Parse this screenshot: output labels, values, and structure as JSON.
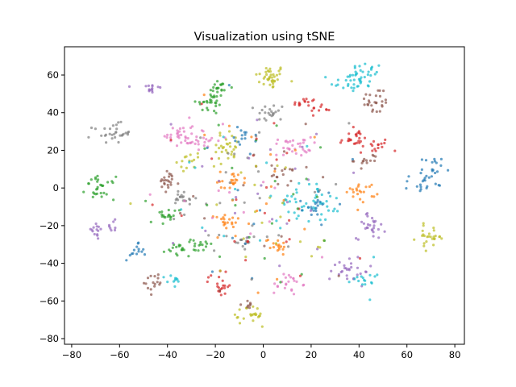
{
  "chart_data": {
    "type": "scatter",
    "title": "Visualization using tSNE",
    "xlabel": "",
    "ylabel": "",
    "xlim": [
      -83,
      84
    ],
    "ylim": [
      -83,
      75
    ],
    "xticks": [
      -80,
      -60,
      -40,
      -20,
      0,
      20,
      40,
      60,
      80
    ],
    "yticks": [
      -80,
      -60,
      -40,
      -20,
      0,
      20,
      40,
      60
    ],
    "grid": false,
    "legend": "none",
    "colors": {
      "blue": "#1f77b4",
      "orange": "#ff7f0e",
      "green": "#2ca02c",
      "red": "#d62728",
      "purple": "#9467bd",
      "brown": "#8c564b",
      "pink": "#e377c2",
      "gray": "#7f7f7f",
      "olive": "#bcbd22",
      "cyan": "#17becf"
    },
    "clusters": [
      {
        "color": "olive",
        "cx": 3,
        "cy": 59,
        "sx": 3.2,
        "sy": 3.2,
        "n": 38
      },
      {
        "color": "cyan",
        "cx": 43,
        "cy": 60,
        "sx": 3.5,
        "sy": 3.5,
        "n": 30
      },
      {
        "color": "cyan",
        "cx": 35,
        "cy": 56,
        "sx": 3.5,
        "sy": 2.5,
        "n": 20
      },
      {
        "color": "purple",
        "cx": -47,
        "cy": 53,
        "sx": 2.2,
        "sy": 1.8,
        "n": 14
      },
      {
        "color": "green",
        "cx": -19,
        "cy": 53,
        "sx": 2.5,
        "sy": 2.5,
        "n": 20
      },
      {
        "color": "green",
        "cx": -22,
        "cy": 45,
        "sx": 3,
        "sy": 3,
        "n": 26
      },
      {
        "color": "brown",
        "cx": 47,
        "cy": 46,
        "sx": 3,
        "sy": 4,
        "n": 26
      },
      {
        "color": "gray",
        "cx": 3,
        "cy": 40,
        "sx": 3,
        "sy": 2.5,
        "n": 22
      },
      {
        "color": "red",
        "cx": 17,
        "cy": 45,
        "sx": 2.5,
        "sy": 1.5,
        "n": 14
      },
      {
        "color": "red",
        "cx": 24,
        "cy": 42,
        "sx": 2,
        "sy": 1.5,
        "n": 10
      },
      {
        "color": "gray",
        "cx": -63,
        "cy": 29,
        "sx": 4,
        "sy": 2.5,
        "n": 30
      },
      {
        "color": "pink",
        "cx": -35,
        "cy": 28,
        "sx": 3,
        "sy": 4,
        "n": 30
      },
      {
        "color": "pink",
        "cx": -25,
        "cy": 25,
        "sx": 3,
        "sy": 3,
        "n": 20
      },
      {
        "color": "olive",
        "cx": -15,
        "cy": 22,
        "sx": 3.5,
        "sy": 4,
        "n": 30
      },
      {
        "color": "blue",
        "cx": -7,
        "cy": 28,
        "sx": 2.5,
        "sy": 2.5,
        "n": 14
      },
      {
        "color": "pink",
        "cx": 12,
        "cy": 22,
        "sx": 4,
        "sy": 2.5,
        "n": 30
      },
      {
        "color": "red",
        "cx": 38,
        "cy": 26,
        "sx": 3,
        "sy": 2.5,
        "n": 26
      },
      {
        "color": "red",
        "cx": 48,
        "cy": 22,
        "sx": 2.5,
        "sy": 2,
        "n": 14
      },
      {
        "color": "brown",
        "cx": 43,
        "cy": 15,
        "sx": 2.5,
        "sy": 2,
        "n": 14
      },
      {
        "color": "olive",
        "cx": -31,
        "cy": 14,
        "sx": 2.5,
        "sy": 2,
        "n": 14
      },
      {
        "color": "green",
        "cx": -68,
        "cy": 0,
        "sx": 3,
        "sy": 3,
        "n": 30
      },
      {
        "color": "brown",
        "cx": -40,
        "cy": 3,
        "sx": 2.5,
        "sy": 3,
        "n": 22
      },
      {
        "color": "gray",
        "cx": -33,
        "cy": -6,
        "sx": 2.5,
        "sy": 3,
        "n": 20
      },
      {
        "color": "orange",
        "cx": -13,
        "cy": 5,
        "sx": 3,
        "sy": 2,
        "n": 18
      },
      {
        "color": "brown",
        "cx": 9,
        "cy": 7,
        "sx": 3,
        "sy": 3,
        "n": 16
      },
      {
        "color": "cyan",
        "cx": 18,
        "cy": -8,
        "sx": 6,
        "sy": 5,
        "n": 46
      },
      {
        "color": "blue",
        "cx": 23,
        "cy": -8,
        "sx": 3,
        "sy": 4,
        "n": 18
      },
      {
        "color": "orange",
        "cx": 41,
        "cy": -2,
        "sx": 3,
        "sy": 2.5,
        "n": 22
      },
      {
        "color": "blue",
        "cx": 66,
        "cy": 2,
        "sx": 2.5,
        "sy": 2.5,
        "n": 14
      },
      {
        "color": "blue",
        "cx": 71,
        "cy": 9,
        "sx": 2.5,
        "sy": 4,
        "n": 22
      },
      {
        "color": "green",
        "cx": -42,
        "cy": -16,
        "sx": 2.5,
        "sy": 2.5,
        "n": 18
      },
      {
        "color": "orange",
        "cx": -15,
        "cy": -18,
        "sx": 2.5,
        "sy": 2.5,
        "n": 18
      },
      {
        "color": "purple",
        "cx": -70,
        "cy": -23,
        "sx": 2,
        "sy": 2.5,
        "n": 14
      },
      {
        "color": "purple",
        "cx": -63,
        "cy": -20,
        "sx": 1.5,
        "sy": 1.5,
        "n": 8
      },
      {
        "color": "purple",
        "cx": 45,
        "cy": -20,
        "sx": 3,
        "sy": 3.5,
        "n": 26
      },
      {
        "color": "olive",
        "cx": 70,
        "cy": -26,
        "sx": 3,
        "sy": 3,
        "n": 26
      },
      {
        "color": "blue",
        "cx": -54,
        "cy": -34,
        "sx": 2,
        "sy": 2,
        "n": 14
      },
      {
        "color": "green",
        "cx": -35,
        "cy": -33,
        "sx": 3,
        "sy": 2,
        "n": 18
      },
      {
        "color": "green",
        "cx": -27,
        "cy": -31,
        "sx": 3,
        "sy": 2,
        "n": 16
      },
      {
        "color": "gray",
        "cx": -9,
        "cy": -28,
        "sx": 2.5,
        "sy": 2.5,
        "n": 14
      },
      {
        "color": "orange",
        "cx": 6,
        "cy": -30,
        "sx": 2.5,
        "sy": 2,
        "n": 16
      },
      {
        "color": "purple",
        "cx": 36,
        "cy": -44,
        "sx": 4,
        "sy": 4,
        "n": 28
      },
      {
        "color": "cyan",
        "cx": 42,
        "cy": -47,
        "sx": 2.5,
        "sy": 3,
        "n": 16
      },
      {
        "color": "brown",
        "cx": -45,
        "cy": -50,
        "sx": 2.5,
        "sy": 3,
        "n": 16
      },
      {
        "color": "cyan",
        "cx": -37,
        "cy": -50,
        "sx": 2,
        "sy": 2,
        "n": 10
      },
      {
        "color": "red",
        "cx": -18,
        "cy": -50,
        "sx": 3,
        "sy": 4,
        "n": 22
      },
      {
        "color": "pink",
        "cx": 10,
        "cy": -51,
        "sx": 3,
        "sy": 3,
        "n": 22
      },
      {
        "color": "olive",
        "cx": -4,
        "cy": -68,
        "sx": 2.5,
        "sy": 3,
        "n": 22
      },
      {
        "color": "brown",
        "cx": -8,
        "cy": -62,
        "sx": 2,
        "sy": 2,
        "n": 8
      },
      {
        "color": "mixed",
        "cx": -2,
        "cy": -5,
        "sx": 20,
        "sy": 24,
        "n": 200
      }
    ]
  }
}
